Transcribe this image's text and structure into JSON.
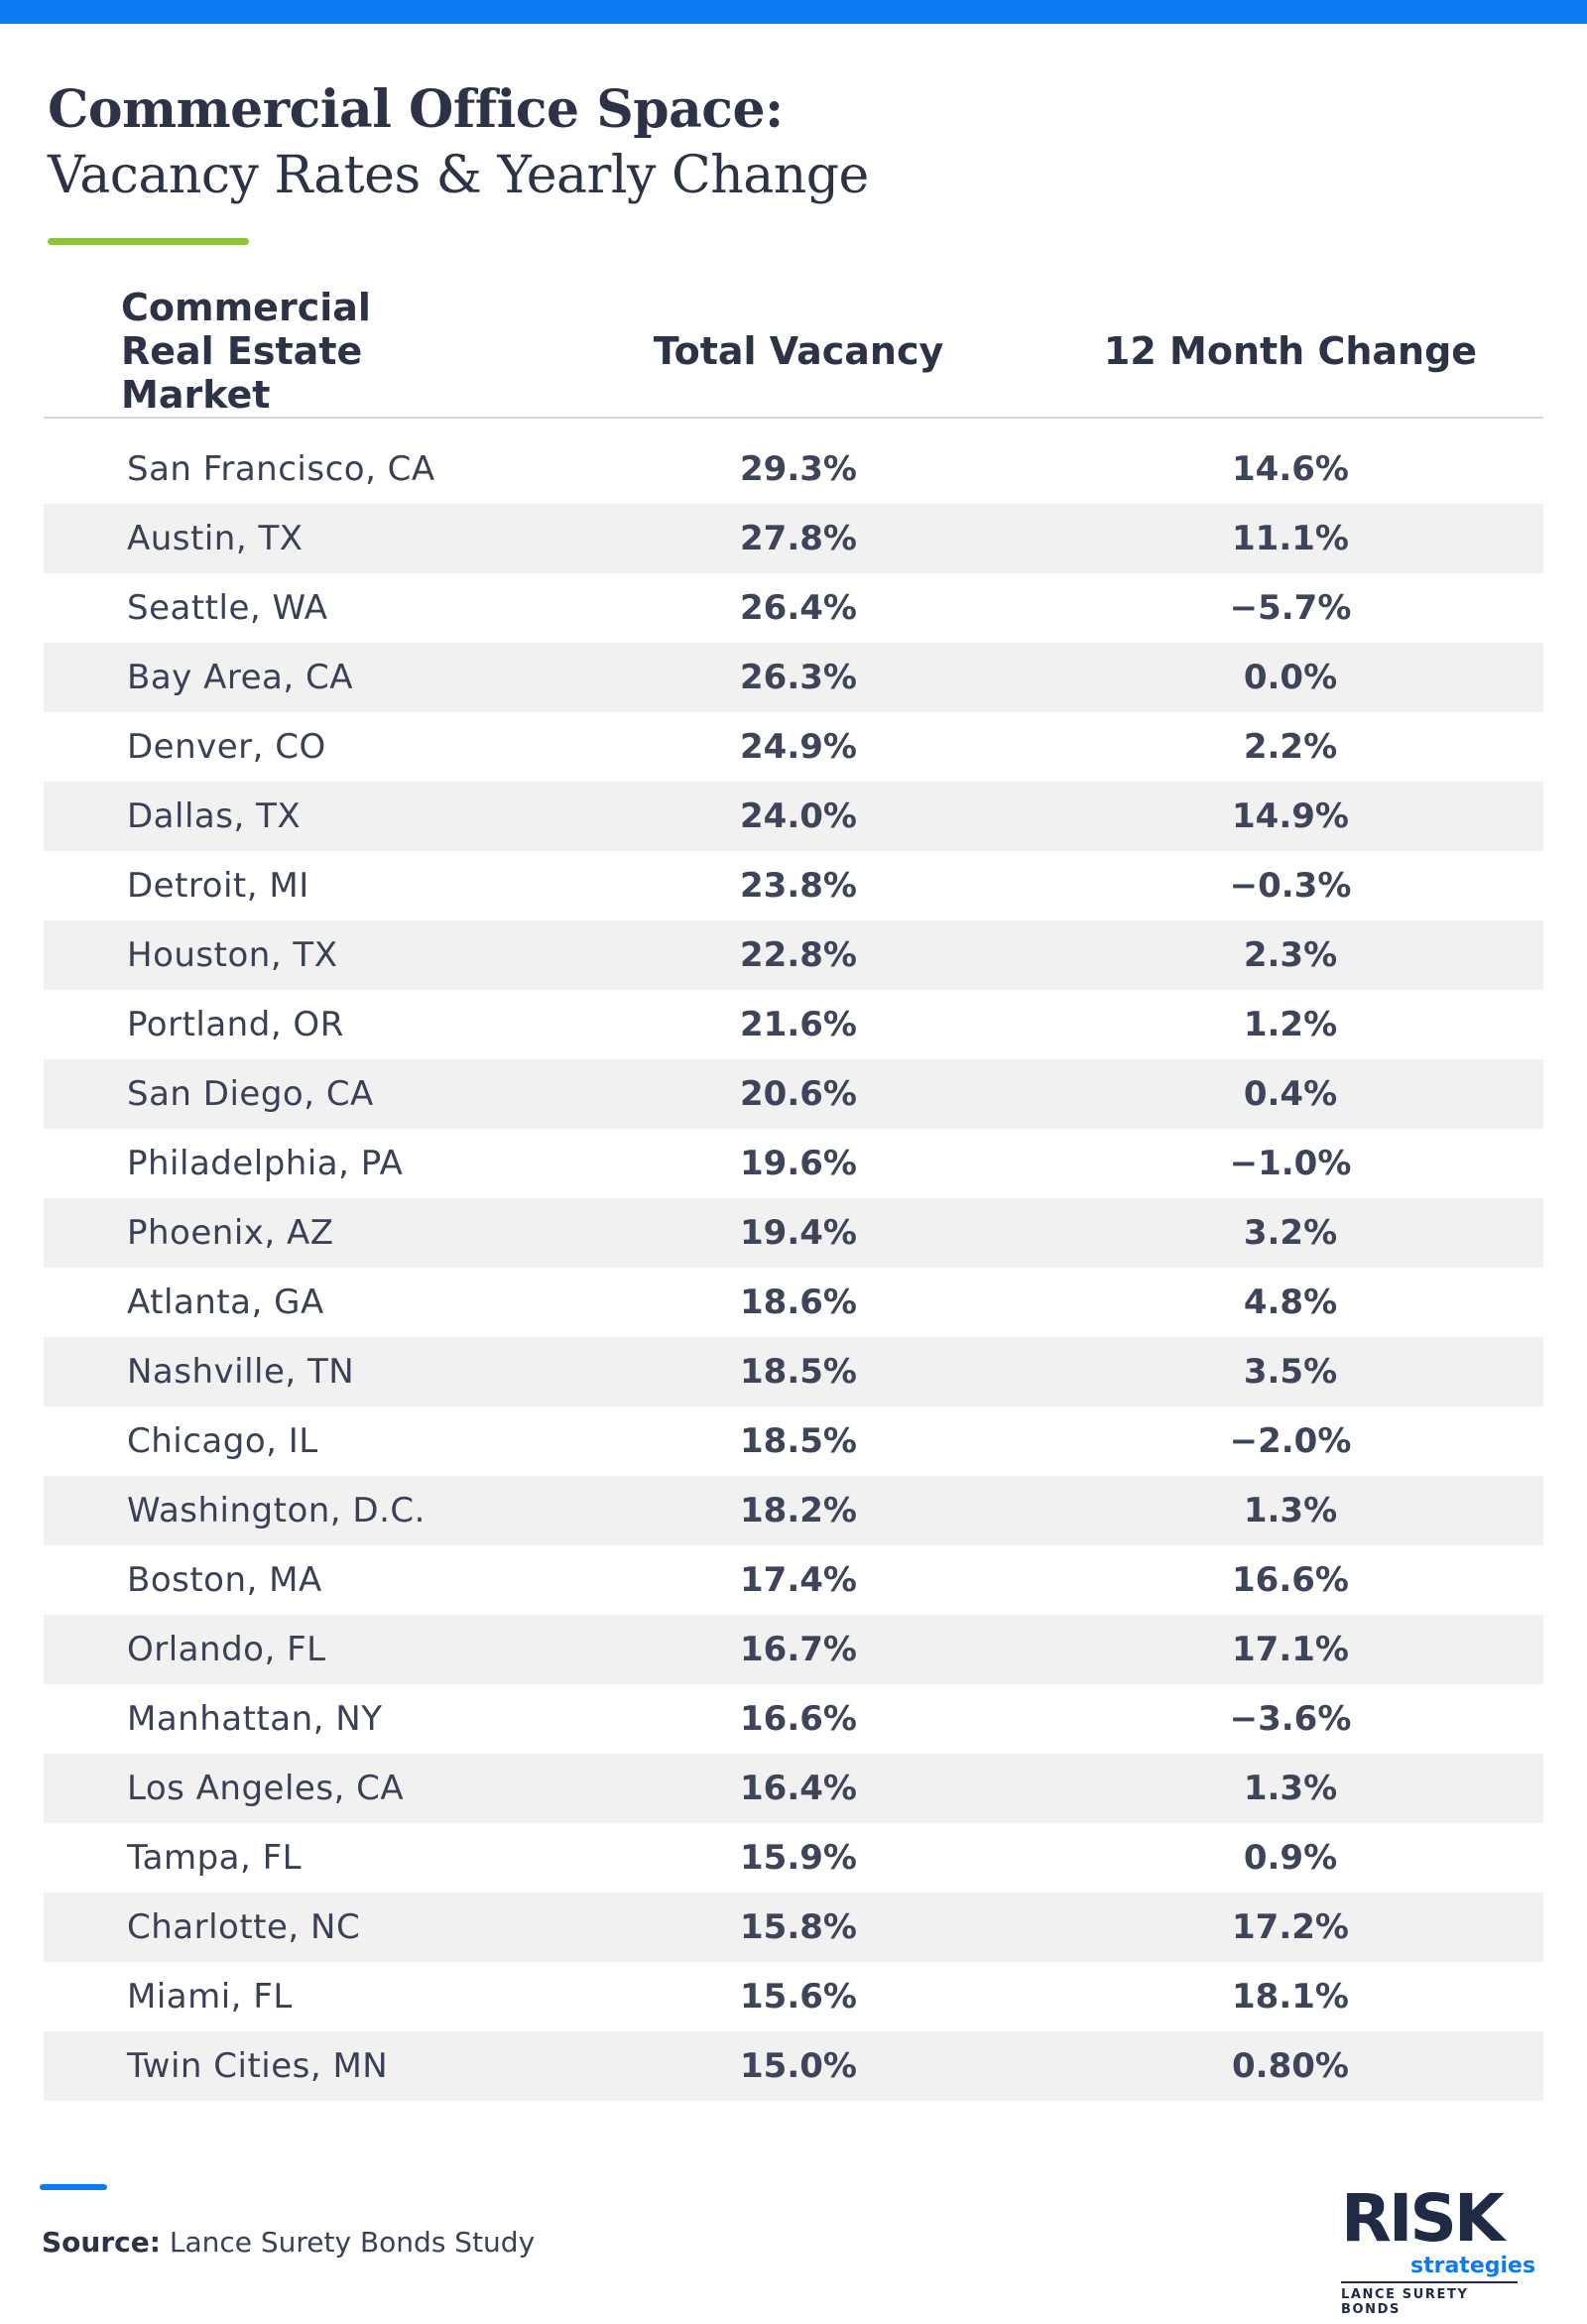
{
  "title": {
    "line1": "Commercial Office Space:",
    "line2": "Vacancy Rates & Yearly Change"
  },
  "colors": {
    "accent_blue": "#0b7bf2",
    "accent_green": "#8cc43e",
    "text_dark": "#2c3346",
    "row_stripe": "#f1f1f2"
  },
  "chart_data": {
    "type": "table",
    "columns": [
      "Commercial Real Estate Market",
      "Total Vacancy",
      "12 Month Change"
    ],
    "rows": [
      [
        "San Francisco, CA",
        "29.3%",
        "14.6%"
      ],
      [
        "Austin, TX",
        "27.8%",
        "11.1%"
      ],
      [
        "Seattle, WA",
        "26.4%",
        "−5.7%"
      ],
      [
        "Bay Area, CA",
        "26.3%",
        "0.0%"
      ],
      [
        "Denver, CO",
        "24.9%",
        "2.2%"
      ],
      [
        "Dallas, TX",
        "24.0%",
        "14.9%"
      ],
      [
        "Detroit, MI",
        "23.8%",
        "−0.3%"
      ],
      [
        "Houston, TX",
        "22.8%",
        "2.3%"
      ],
      [
        "Portland, OR",
        "21.6%",
        "1.2%"
      ],
      [
        "San Diego, CA",
        "20.6%",
        "0.4%"
      ],
      [
        "Philadelphia, PA",
        "19.6%",
        "−1.0%"
      ],
      [
        "Phoenix, AZ",
        "19.4%",
        "3.2%"
      ],
      [
        "Atlanta, GA",
        "18.6%",
        "4.8%"
      ],
      [
        "Nashville, TN",
        "18.5%",
        "3.5%"
      ],
      [
        "Chicago, IL",
        "18.5%",
        "−2.0%"
      ],
      [
        "Washington, D.C.",
        "18.2%",
        "1.3%"
      ],
      [
        "Boston, MA",
        "17.4%",
        "16.6%"
      ],
      [
        "Orlando, FL",
        "16.7%",
        "17.1%"
      ],
      [
        "Manhattan, NY",
        "16.6%",
        "−3.6%"
      ],
      [
        "Los Angeles, CA",
        "16.4%",
        "1.3%"
      ],
      [
        "Tampa, FL",
        "15.9%",
        "0.9%"
      ],
      [
        "Charlotte, NC",
        "15.8%",
        "17.2%"
      ],
      [
        "Miami, FL",
        "15.6%",
        "18.1%"
      ],
      [
        "Twin Cities, MN",
        "15.0%",
        "0.80%"
      ]
    ]
  },
  "source": {
    "label": "Source:",
    "text": "Lance Surety Bonds Study"
  },
  "logo": {
    "word": "RISK",
    "sub": "strategies",
    "tag": "LANCE SURETY BONDS"
  }
}
